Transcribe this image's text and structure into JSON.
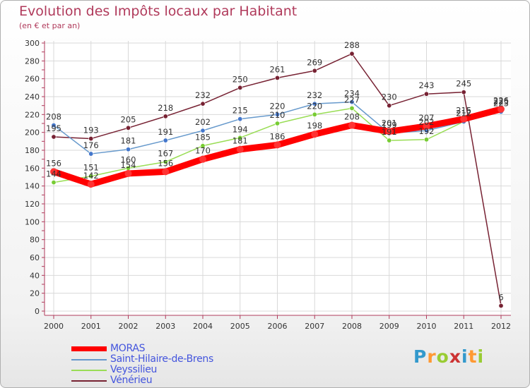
{
  "header": {
    "title": "Evolution des Impôts locaux par Habitant",
    "subtitle": "(en € et par an)"
  },
  "colors": {
    "title": "#b03a5b",
    "grid": "#d9d9d9",
    "axis": "#b03a5b",
    "moras": "#ff0000",
    "sthilaire": "#6699cc",
    "veyssilieu": "#99dd55",
    "venerieu": "#772233"
  },
  "chart_data": {
    "type": "line",
    "title": "Evolution des Impôts locaux par Habitant",
    "subtitle": "(en € et par an)",
    "xlabel": "",
    "ylabel": "",
    "ylim": [
      0,
      300
    ],
    "ytick_step": 20,
    "grid": true,
    "categories": [
      "2000",
      "2001",
      "2002",
      "2003",
      "2004",
      "2005",
      "2006",
      "2007",
      "2008",
      "2009",
      "2010",
      "2011",
      "2012"
    ],
    "series": [
      {
        "name": "MORAS",
        "key": "moras",
        "values": [
          156,
          142,
          154,
          156,
          170,
          181,
          186,
          198,
          208,
          201,
          207,
          215,
          226
        ]
      },
      {
        "name": "Saint-Hilaire-de-Brens",
        "key": "sthilaire",
        "values": [
          208,
          176,
          181,
          191,
          202,
          215,
          220,
          232,
          234,
          199,
          202,
          212,
          223
        ]
      },
      {
        "name": "Veyssilieu",
        "key": "veyssilieu",
        "values": [
          144,
          151,
          160,
          167,
          185,
          194,
          210,
          220,
          227,
          191,
          192,
          212,
          225
        ]
      },
      {
        "name": "Vénérieu",
        "key": "venerieu",
        "values": [
          195,
          193,
          205,
          218,
          232,
          250,
          261,
          269,
          288,
          230,
          243,
          245,
          6
        ]
      }
    ],
    "data_labels": [
      {
        "series": "moras",
        "values": [
          "156",
          "142",
          "154",
          "156",
          "170",
          "181",
          "186",
          "198",
          "208",
          "201",
          "207",
          "215",
          "226"
        ]
      },
      {
        "series": "sthilaire",
        "values": [
          "208",
          "176",
          "181",
          "191",
          "202",
          "215",
          "220",
          "232",
          "234",
          "199",
          "202",
          "212",
          "223"
        ]
      },
      {
        "series": "veyssilieu",
        "values": [
          "144",
          "151",
          "160",
          "167",
          "185",
          "194",
          "210",
          "220",
          "227",
          "191",
          "192",
          "212",
          "225"
        ]
      },
      {
        "series": "venerieu",
        "values": [
          "195",
          "193",
          "205",
          "218",
          "232",
          "250",
          "261",
          "269",
          "288",
          "230",
          "243",
          "245",
          "6"
        ]
      }
    ]
  },
  "legend": {
    "items": [
      {
        "label": "MORAS",
        "key": "moras"
      },
      {
        "label": "Saint-Hilaire-de-Brens",
        "key": "sthilaire"
      },
      {
        "label": "Veyssilieu",
        "key": "veyssilieu"
      },
      {
        "label": "Vénérieu",
        "key": "venerieu"
      }
    ]
  },
  "logo": {
    "letters": [
      "P",
      "r",
      "o",
      "x",
      "i",
      "t",
      "i"
    ],
    "letter_colors": [
      "#3399cc",
      "#ff9933",
      "#99cc33",
      "#cc3333",
      "#3399cc",
      "#ff9933",
      "#99cc33"
    ]
  }
}
